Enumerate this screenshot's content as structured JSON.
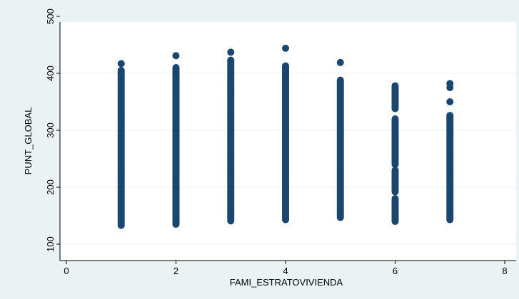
{
  "chart_data": {
    "type": "scatter",
    "title": "",
    "xlabel": "FAMI_ESTRATOVIVIENDA",
    "ylabel": "PUNT_GLOBAL",
    "xlim": [
      0,
      8
    ],
    "ylim": [
      100,
      500
    ],
    "xticks": [
      0,
      2,
      4,
      6,
      8
    ],
    "yticks": [
      100,
      200,
      300,
      400,
      500
    ],
    "grid": true,
    "marker_color": "#1a476f",
    "plot_background": "#ffffff",
    "figure_background": "#eaf2f3",
    "gridline_color": "#eaf2f3",
    "series": [
      {
        "points": [
          {
            "x": 1,
            "y_min": 133,
            "y_max": 405,
            "outliers": [
              417
            ]
          },
          {
            "x": 2,
            "y_min": 135,
            "y_max": 410,
            "outliers": [
              431
            ]
          },
          {
            "x": 3,
            "y_min": 141,
            "y_max": 423,
            "outliers": [
              437
            ]
          },
          {
            "x": 4,
            "y_min": 143,
            "y_max": 413,
            "outliers": [
              444
            ]
          },
          {
            "x": 5,
            "y_min": 147,
            "y_max": 388,
            "outliers": [
              419
            ]
          },
          {
            "x": 6,
            "y_min": 140,
            "y_max": 378,
            "gaps": [
              [
                320,
                338
              ],
              [
                230,
                240
              ],
              [
                180,
                192
              ]
            ]
          },
          {
            "x": 7,
            "y_min": 143,
            "y_max": 326,
            "outliers": [
              350,
              375,
              382
            ]
          }
        ]
      }
    ]
  }
}
